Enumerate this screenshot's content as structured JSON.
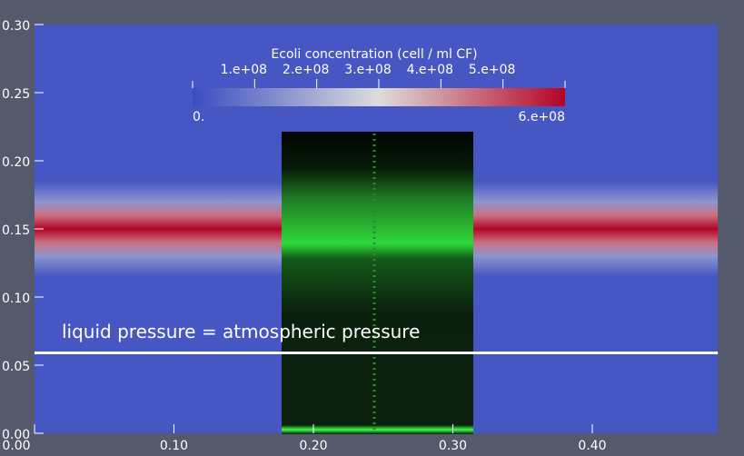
{
  "chart_data": {
    "type": "field",
    "xlim": [
      0,
      0.49
    ],
    "ylim": [
      0,
      0.3
    ],
    "xticks": [
      {
        "value": 0,
        "label": "0.00"
      },
      {
        "value": 0.1,
        "label": "0.10"
      },
      {
        "value": 0.2,
        "label": "0.20"
      },
      {
        "value": 0.3,
        "label": "0.30"
      },
      {
        "value": 0.4,
        "label": "0.40"
      }
    ],
    "yticks": [
      {
        "value": 0,
        "label": "0.00"
      },
      {
        "value": 0.05,
        "label": "0.05"
      },
      {
        "value": 0.1,
        "label": "0.10"
      },
      {
        "value": 0.15,
        "label": "0.15"
      },
      {
        "value": 0.2,
        "label": "0.20"
      },
      {
        "value": 0.25,
        "label": "0.25"
      },
      {
        "value": 0.3,
        "label": "0.30"
      }
    ],
    "profile": {
      "y": [
        0,
        0.115,
        0.13,
        0.14,
        0.15,
        0.16,
        0.17,
        0.185,
        0.3
      ],
      "values": [
        20000000,
        20000000,
        150000000,
        450000000,
        600000000,
        450000000,
        150000000,
        20000000,
        20000000
      ]
    },
    "colorbar": {
      "title": "Ecoli concentration (cell / ml CF)",
      "lim": [
        {
          "value": 0,
          "label": "0."
        },
        {
          "value": 600000000,
          "label": "6.e+08"
        }
      ],
      "ticks": [
        {
          "value": 100000000,
          "label": "1.e+08"
        },
        {
          "value": 200000000,
          "label": "2.e+08"
        },
        {
          "value": 300000000,
          "label": "3.e+08"
        },
        {
          "value": 400000000,
          "label": "4.e+08"
        },
        {
          "value": 500000000,
          "label": "5.e+08"
        }
      ],
      "colors": [
        "#3b4cc0",
        "#dddddd",
        "#b40426"
      ]
    },
    "annotation": {
      "text": "liquid pressure = atmospheric pressure",
      "y": 0.059
    }
  }
}
